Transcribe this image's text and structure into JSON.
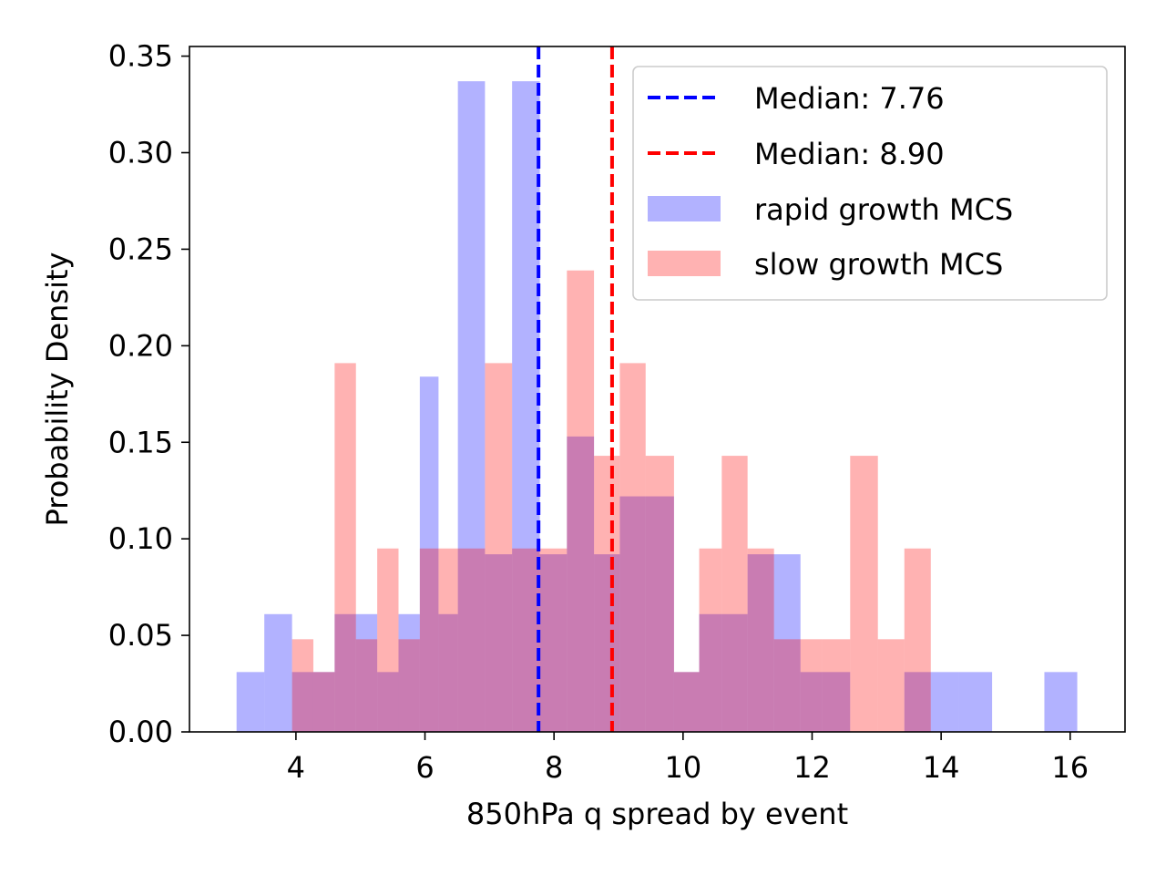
{
  "chart_data": {
    "type": "bar",
    "title": "",
    "xlabel": "850hPa q spread by event",
    "ylabel": "Probability Density",
    "xlim": [
      2.35,
      16.85
    ],
    "ylim": [
      0.0,
      0.355
    ],
    "xticks": [
      4,
      6,
      8,
      10,
      12,
      14,
      16
    ],
    "yticks": [
      0.0,
      0.05,
      0.1,
      0.15,
      0.2,
      0.25,
      0.3,
      0.35
    ],
    "ytick_labels": [
      "0.00",
      "0.05",
      "0.10",
      "0.15",
      "0.20",
      "0.25",
      "0.30",
      "0.35"
    ],
    "grid": false,
    "legend_position": "top-right",
    "series": [
      {
        "name": "rapid growth MCS",
        "color": "#0000ff",
        "opacity": 0.3,
        "bin_edges": [
          3.08,
          3.51,
          3.94,
          4.27,
          4.6,
          4.93,
          5.26,
          5.59,
          5.92,
          6.21,
          6.51,
          6.93,
          7.35,
          7.78,
          8.2,
          8.62,
          9.02,
          9.42,
          9.86,
          10.25,
          10.6,
          11.0,
          11.41,
          11.82,
          12.16,
          12.59,
          13.02,
          13.43,
          13.84,
          14.27,
          14.79,
          15.19,
          15.6,
          16.11
        ],
        "values": [
          0.031,
          0.061,
          0.031,
          0.031,
          0.061,
          0.061,
          0.031,
          0.061,
          0.184,
          0.061,
          0.337,
          0.092,
          0.337,
          0.092,
          0.153,
          0.092,
          0.122,
          0.122,
          0.031,
          0.061,
          0.061,
          0.092,
          0.092,
          0.031,
          0.031,
          0.0,
          0.0,
          0.031,
          0.031,
          0.031,
          0.0,
          0.0,
          0.031
        ]
      },
      {
        "name": "slow growth MCS",
        "color": "#ff0000",
        "opacity": 0.3,
        "bin_edges": [
          3.94,
          4.27,
          4.6,
          4.93,
          5.26,
          5.59,
          5.92,
          6.21,
          6.51,
          6.93,
          7.35,
          7.78,
          8.2,
          8.62,
          9.02,
          9.42,
          9.86,
          10.25,
          10.6,
          11.0,
          11.41,
          11.82,
          12.16,
          12.59,
          13.02,
          13.43,
          13.84
        ],
        "values": [
          0.048,
          0.031,
          0.191,
          0.048,
          0.095,
          0.048,
          0.095,
          0.095,
          0.095,
          0.191,
          0.095,
          0.095,
          0.239,
          0.143,
          0.191,
          0.143,
          0.031,
          0.095,
          0.143,
          0.095,
          0.048,
          0.048,
          0.048,
          0.143,
          0.048,
          0.095
        ]
      }
    ],
    "medians": [
      {
        "label": "Median: 7.76",
        "value": 7.76,
        "color": "#0000ff"
      },
      {
        "label": "Median: 8.90",
        "value": 8.9,
        "color": "#ff0000"
      }
    ]
  }
}
